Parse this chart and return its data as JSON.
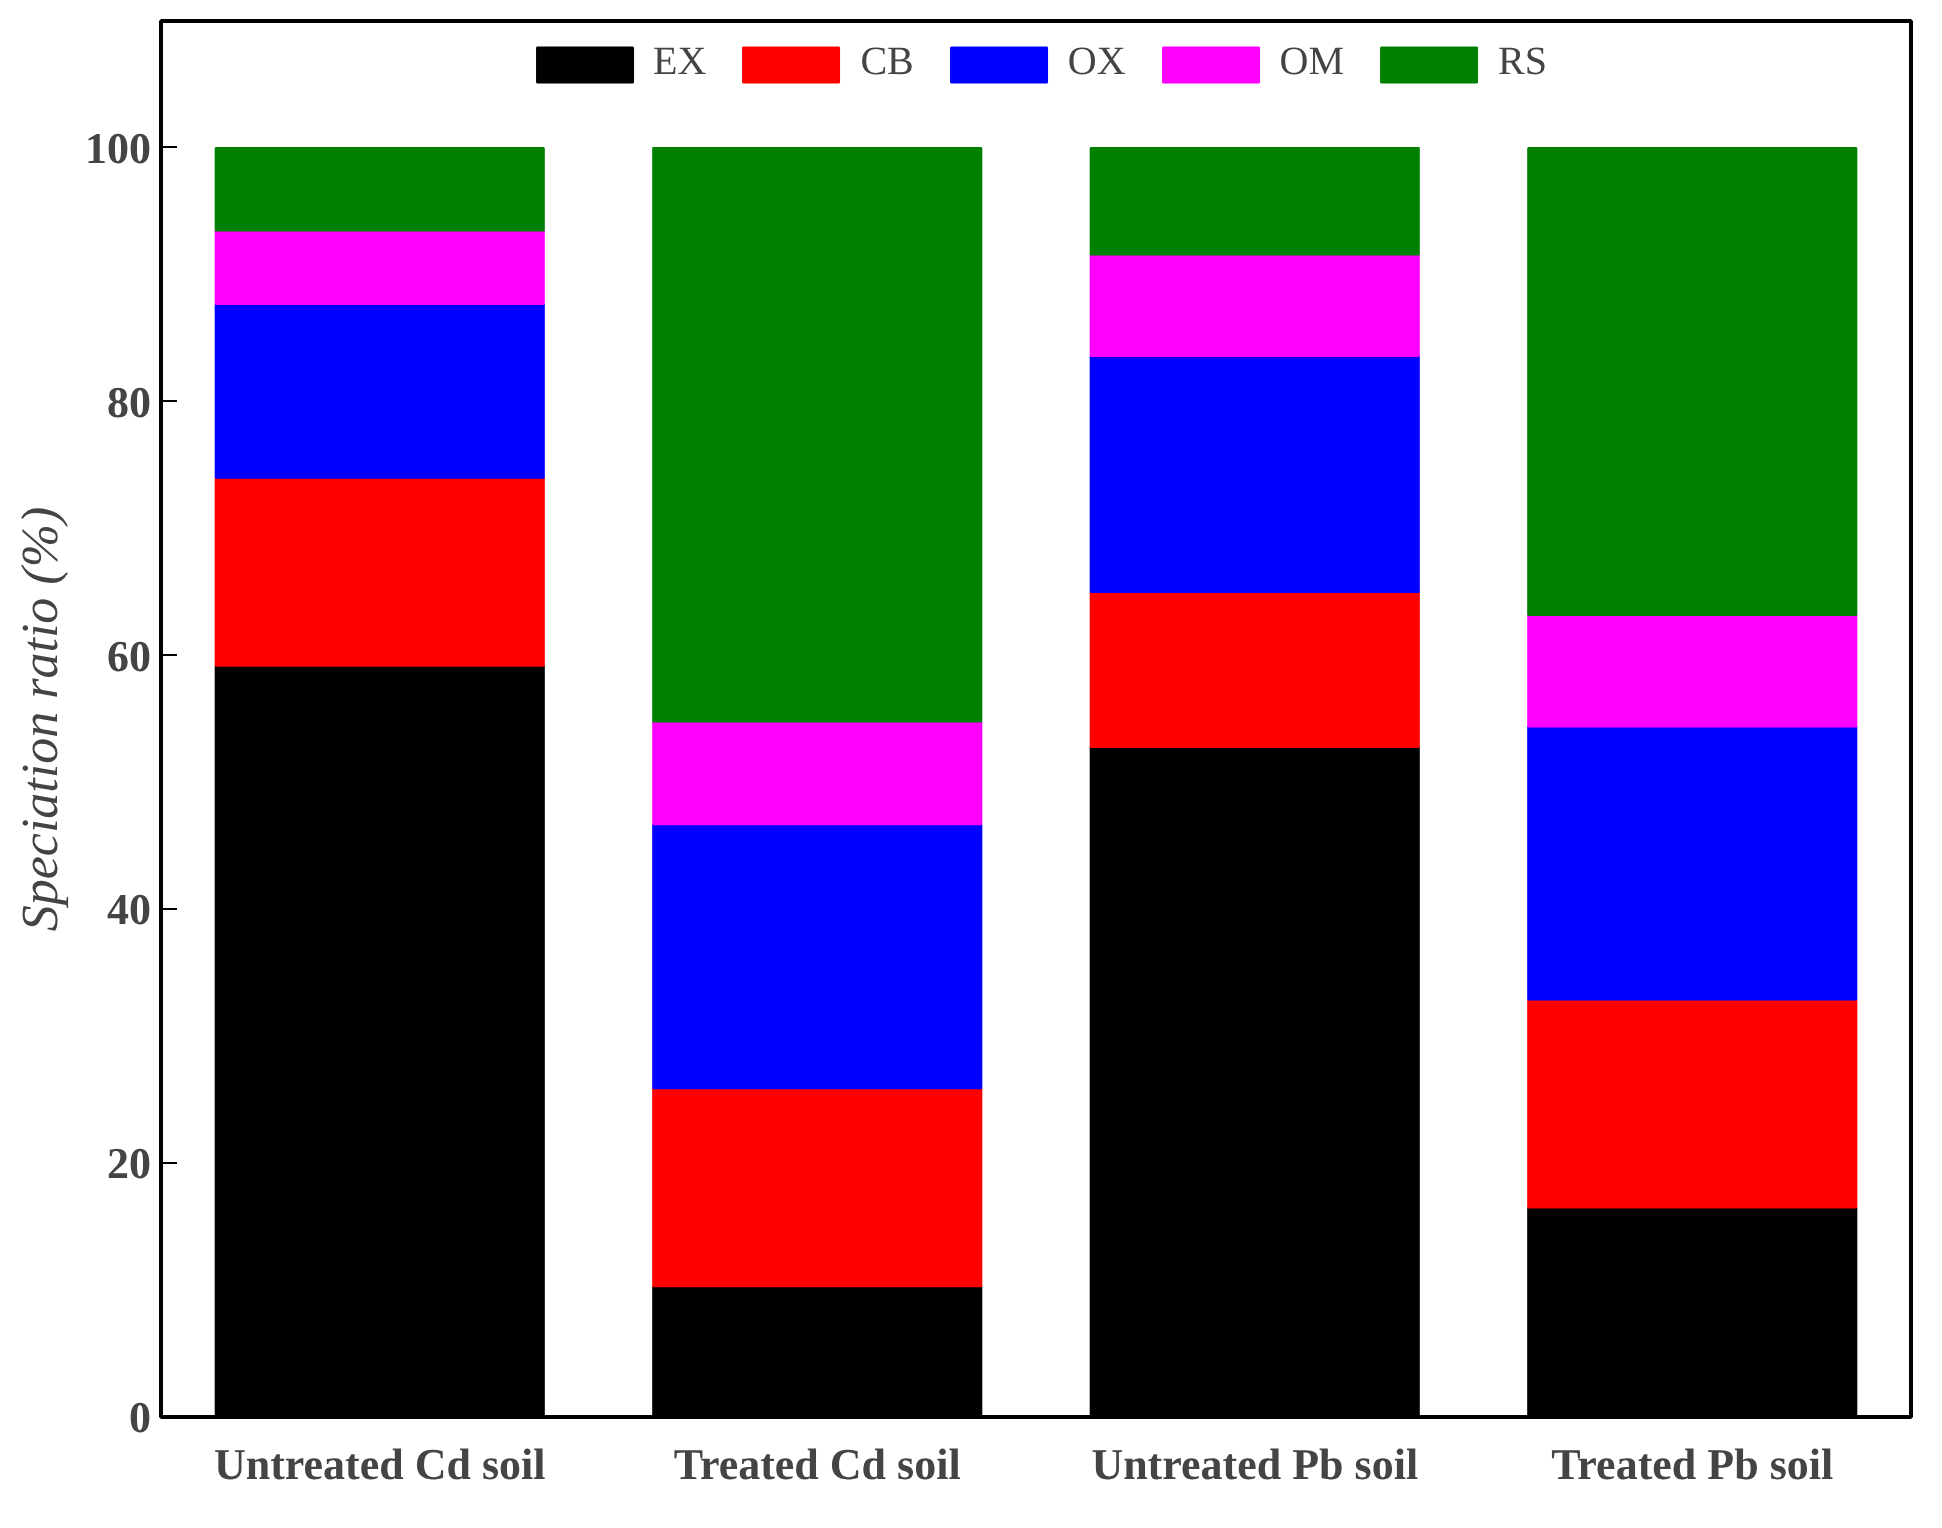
{
  "chart_data": {
    "type": "bar",
    "stacked": true,
    "ylabel": "Speciation ratio (%)",
    "categories": [
      "Untreated Cd soil",
      "Treated Cd soil",
      "Untreated Pb soil",
      "Treated Pb soil"
    ],
    "series": [
      {
        "name": "EX",
        "color": "#000000",
        "values": [
          59.2,
          10.3,
          52.8,
          16.5
        ]
      },
      {
        "name": "CB",
        "color": "#ff0000",
        "values": [
          14.8,
          15.6,
          12.2,
          16.4
        ]
      },
      {
        "name": "OX",
        "color": "#0000ff",
        "values": [
          13.7,
          20.8,
          18.6,
          21.5
        ]
      },
      {
        "name": "OM",
        "color": "#ff00ff",
        "values": [
          5.8,
          8.1,
          8.0,
          8.8
        ]
      },
      {
        "name": "RS",
        "color": "#008000",
        "values": [
          6.5,
          45.2,
          8.4,
          36.8
        ]
      }
    ],
    "ylim": [
      0,
      110
    ],
    "yticks": [
      0,
      20,
      40,
      60,
      80,
      100
    ],
    "grid": false,
    "legend": "top"
  }
}
